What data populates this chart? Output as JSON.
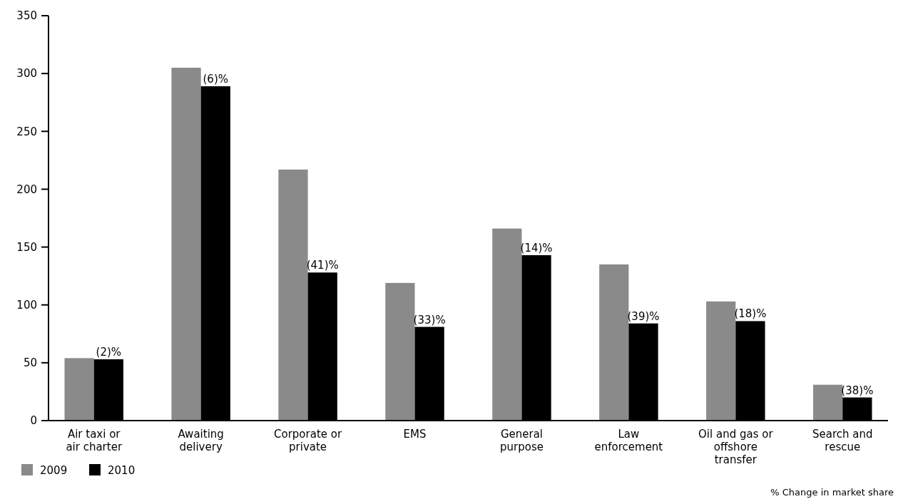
{
  "chart_data": {
    "type": "bar",
    "categories": [
      "Air taxi or air charter",
      "Awaiting delivery",
      "Corporate or private",
      "EMS",
      "General purpose",
      "Law enforcement",
      "Oil and gas or offshore transfer",
      "Search and rescue"
    ],
    "series": [
      {
        "name": "2009",
        "color": "#8a8a8a",
        "values": [
          54,
          305,
          217,
          119,
          166,
          135,
          103,
          31
        ]
      },
      {
        "name": "2010",
        "color": "#000000",
        "values": [
          53,
          289,
          128,
          81,
          143,
          84,
          86,
          20
        ]
      }
    ],
    "ylim": [
      0,
      350
    ],
    "yticks": [
      0,
      50,
      100,
      150,
      200,
      250,
      300,
      350
    ],
    "grid": false,
    "legend": "bottom left",
    "annotations": [
      {
        "text": "(2)%",
        "x": "Air taxi or air charter",
        "y": 53
      },
      {
        "text": "(6)%",
        "x": "Awaiting delivery",
        "y": 289
      },
      {
        "text": "(41)%",
        "x": "Corporate or private",
        "y": 128
      },
      {
        "text": "(33)%",
        "x": "EMS",
        "y": 81
      },
      {
        "text": "(14)%",
        "x": "General purpose",
        "y": 143
      },
      {
        "text": "(39)%",
        "x": "Law enforcement",
        "y": 84
      },
      {
        "text": "(18)%",
        "x": "Oil and gas or offshore transfer",
        "y": 86
      },
      {
        "text": "(38)%",
        "x": "Search and rescue",
        "y": 20
      },
      "% Change in market share"
    ]
  }
}
